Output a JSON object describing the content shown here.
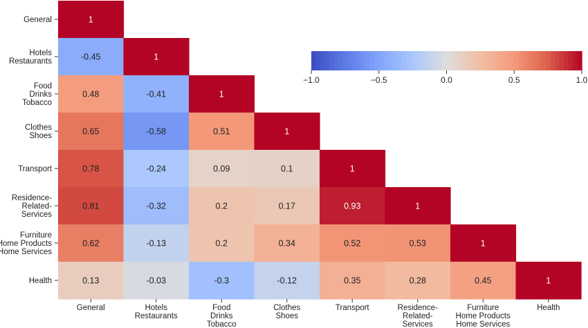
{
  "chart_data": {
    "type": "heatmap",
    "title": "",
    "row_labels": [
      [
        "General"
      ],
      [
        "Hotels",
        "Restaurants"
      ],
      [
        "Food",
        "Drinks",
        "Tobacco"
      ],
      [
        "Clothes",
        "Shoes"
      ],
      [
        "Transport"
      ],
      [
        "Residence-",
        "Related-",
        "Services"
      ],
      [
        "Furniture",
        "Home Products",
        "Home Services"
      ],
      [
        "Health"
      ]
    ],
    "col_labels": [
      [
        "General"
      ],
      [
        "Hotels",
        "Restaurants"
      ],
      [
        "Food",
        "Drinks",
        "Tobacco"
      ],
      [
        "Clothes",
        "Shoes"
      ],
      [
        "Transport"
      ],
      [
        "Residence-",
        "Related-",
        "Services"
      ],
      [
        "Furniture",
        "Home Products",
        "Home Services"
      ],
      [
        "Health"
      ]
    ],
    "values": [
      [
        1
      ],
      [
        -0.45,
        1
      ],
      [
        0.48,
        -0.41,
        1
      ],
      [
        0.65,
        -0.58,
        0.51,
        1
      ],
      [
        0.78,
        -0.24,
        0.09,
        0.1,
        1
      ],
      [
        0.81,
        -0.32,
        0.2,
        0.17,
        0.93,
        1
      ],
      [
        0.62,
        -0.13,
        0.2,
        0.34,
        0.52,
        0.53,
        1
      ],
      [
        0.13,
        -0.03,
        -0.3,
        -0.12,
        0.35,
        0.28,
        0.45,
        1
      ]
    ],
    "value_labels": [
      [
        "1"
      ],
      [
        "-0.45",
        "1"
      ],
      [
        "0.48",
        "-0.41",
        "1"
      ],
      [
        "0.65",
        "-0.58",
        "0.51",
        "1"
      ],
      [
        "0.78",
        "-0.24",
        "0.09",
        "0.1",
        "1"
      ],
      [
        "0.81",
        "-0.32",
        "0.2",
        "0.17",
        "0.93",
        "1"
      ],
      [
        "0.62",
        "-0.13",
        "0.2",
        "0.34",
        "0.52",
        "0.53",
        "1"
      ],
      [
        "0.13",
        "-0.03",
        "-0.3",
        "-0.12",
        "0.35",
        "0.28",
        "0.45",
        "1"
      ]
    ],
    "triangle": "lower",
    "colormap": "coolwarm",
    "vmin": -1,
    "vmax": 1,
    "colorbar": {
      "orientation": "horizontal",
      "placement": "top-right",
      "ticks": [
        -1,
        -0.5,
        0,
        0.5,
        1
      ],
      "tick_labels": [
        "−1.0",
        "−0.5",
        "0.0",
        "0.5",
        "1.0"
      ]
    }
  }
}
